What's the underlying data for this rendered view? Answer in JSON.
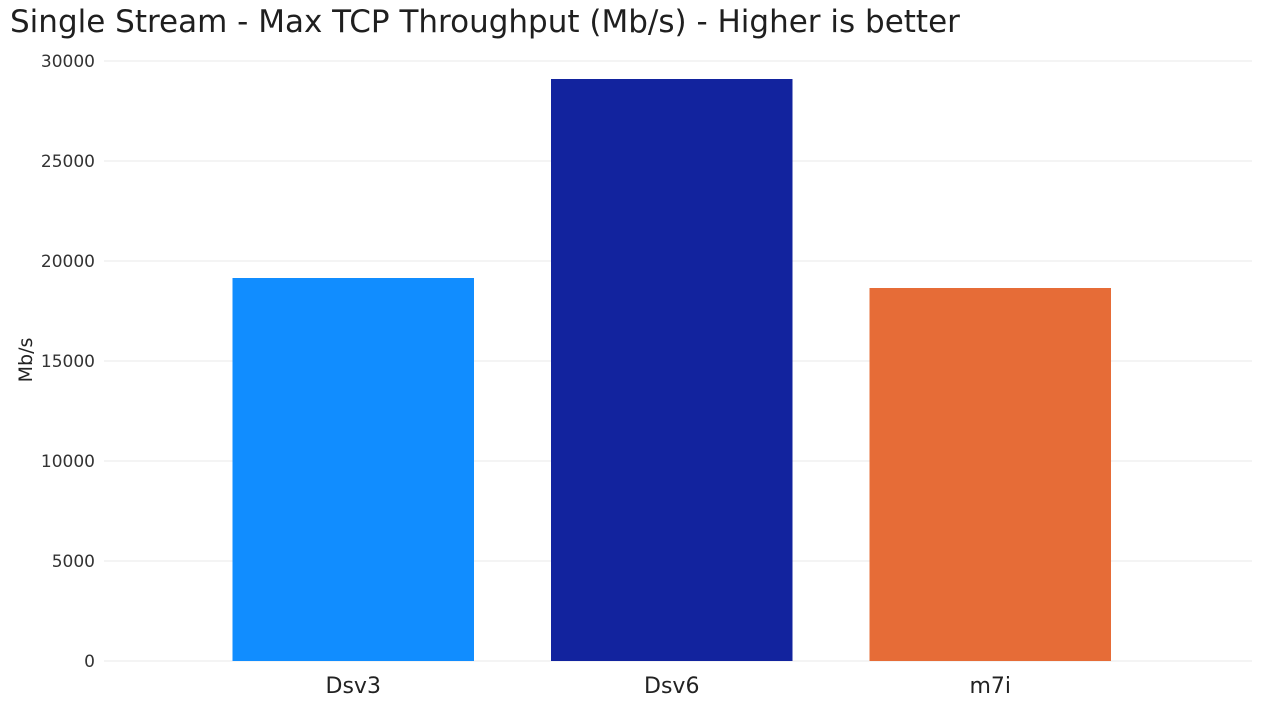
{
  "chart_data": {
    "type": "bar",
    "title": "Single Stream - Max TCP Throughput (Mb/s) - Higher is better",
    "xlabel": "",
    "ylabel": "Mb/s",
    "categories": [
      "Dsv3",
      "Dsv6",
      "m7i"
    ],
    "values": [
      19150,
      29100,
      18650
    ],
    "colors": [
      "#118dff",
      "#12239e",
      "#e66c37"
    ],
    "ylim": [
      0,
      30000
    ],
    "yticks": [
      0,
      5000,
      10000,
      15000,
      20000,
      25000,
      30000
    ],
    "grid": true,
    "legend": "none"
  }
}
